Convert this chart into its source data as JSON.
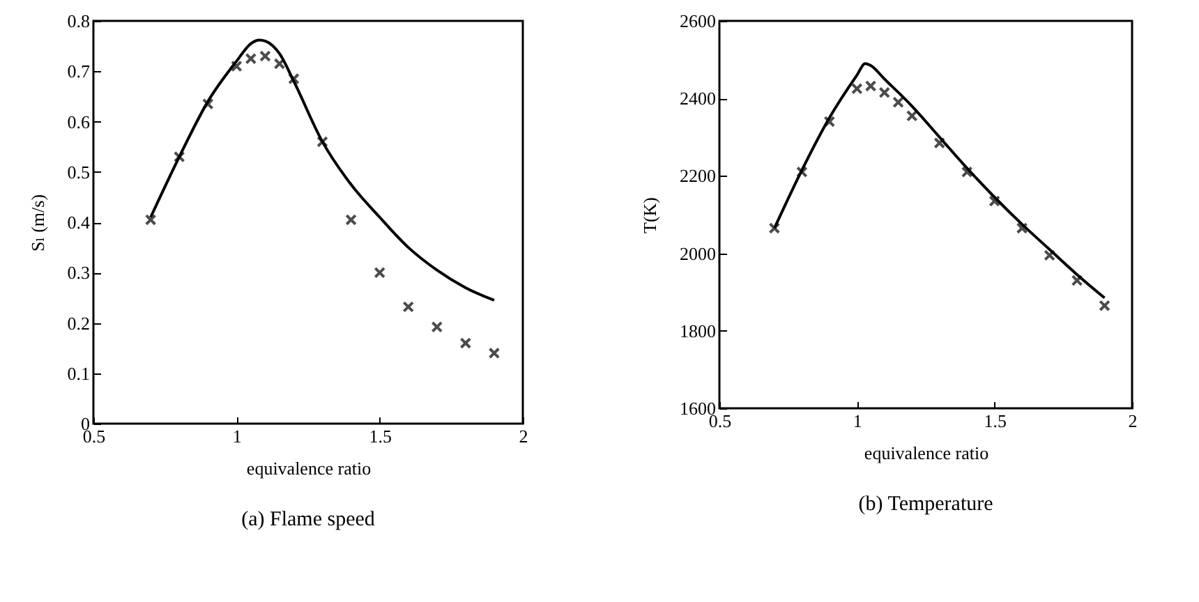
{
  "chart_data": [
    {
      "type": "line",
      "title": "(a)  Flame speed",
      "xlabel": "equivalence ratio",
      "ylabel": "Sₗ (m/s)",
      "xlim": [
        0.5,
        2
      ],
      "xticks": [
        0.5,
        1,
        1.5,
        2
      ],
      "ylim": [
        0,
        0.8
      ],
      "yticks": [
        0,
        0.1,
        0.2,
        0.3,
        0.4,
        0.5,
        0.6,
        0.7,
        0.8
      ],
      "grid": false,
      "legend": false,
      "series": [
        {
          "type": "line",
          "color": "#000000",
          "line_style": "solid",
          "x": [
            0.7,
            0.8,
            0.9,
            1.0,
            1.05,
            1.08,
            1.1,
            1.15,
            1.2,
            1.3,
            1.4,
            1.5,
            1.6,
            1.7,
            1.8,
            1.9
          ],
          "values": [
            0.41,
            0.53,
            0.64,
            0.72,
            0.755,
            0.762,
            0.76,
            0.735,
            0.68,
            0.56,
            0.475,
            0.41,
            0.35,
            0.305,
            0.27,
            0.245
          ]
        },
        {
          "type": "scatter",
          "color": "#000000",
          "marker": "cross",
          "x": [
            0.7,
            0.8,
            0.9,
            1.0,
            1.05,
            1.1,
            1.15,
            1.2,
            1.3,
            1.4,
            1.5,
            1.6,
            1.7,
            1.8,
            1.9
          ],
          "values": [
            0.405,
            0.53,
            0.635,
            0.71,
            0.725,
            0.73,
            0.715,
            0.685,
            0.56,
            0.405,
            0.3,
            0.232,
            0.192,
            0.16,
            0.14
          ]
        }
      ]
    },
    {
      "type": "line",
      "title": "(b)  Temperature",
      "xlabel": "equivalence ratio",
      "ylabel": "T(K)",
      "xlim": [
        0.5,
        2
      ],
      "xticks": [
        0.5,
        1,
        1.5,
        2
      ],
      "ylim": [
        1600,
        2600
      ],
      "yticks": [
        1600,
        1800,
        2000,
        2200,
        2400,
        2600
      ],
      "grid": false,
      "legend": false,
      "series": [
        {
          "type": "line",
          "color": "#000000",
          "line_style": "solid",
          "x": [
            0.7,
            0.8,
            0.9,
            1.0,
            1.03,
            1.05,
            1.1,
            1.2,
            1.3,
            1.4,
            1.5,
            1.6,
            1.7,
            1.8,
            1.9
          ],
          "values": [
            2065,
            2215,
            2350,
            2460,
            2490,
            2485,
            2450,
            2380,
            2300,
            2220,
            2145,
            2075,
            2010,
            1945,
            1885
          ]
        },
        {
          "type": "scatter",
          "color": "#000000",
          "marker": "cross",
          "x": [
            0.7,
            0.8,
            0.9,
            1.0,
            1.05,
            1.1,
            1.15,
            1.2,
            1.3,
            1.4,
            1.5,
            1.6,
            1.7,
            1.8,
            1.9
          ],
          "values": [
            2065,
            2210,
            2340,
            2425,
            2432,
            2415,
            2390,
            2355,
            2285,
            2210,
            2135,
            2065,
            1995,
            1930,
            1865
          ]
        }
      ]
    }
  ]
}
